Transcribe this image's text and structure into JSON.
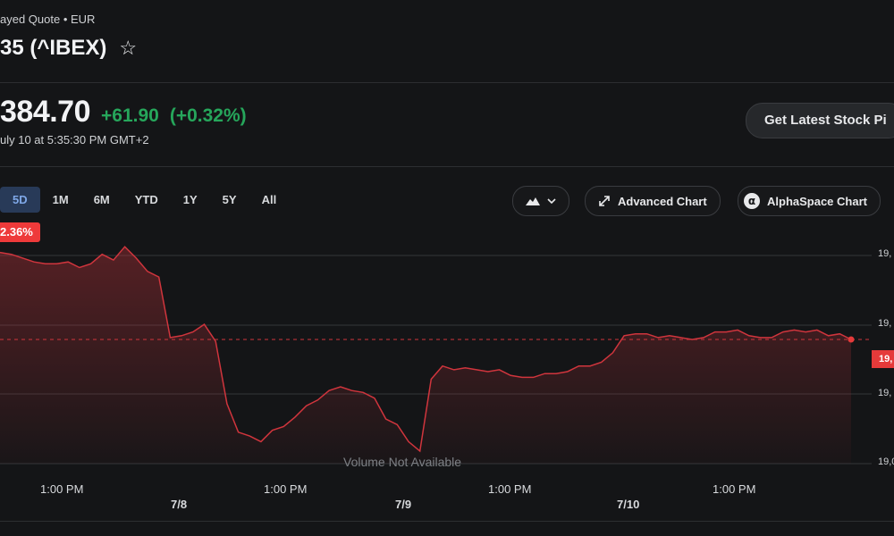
{
  "header": {
    "quote_type": "ayed Quote • EUR",
    "title": "35 (^IBEX)"
  },
  "quote": {
    "price": "384.70",
    "change": "+61.90",
    "change_pct": "(+0.32%)",
    "timestamp": "uly 10 at 5:35:30 PM GMT+2"
  },
  "cta": {
    "label": "Get Latest Stock Pi"
  },
  "range_tabs": {
    "items": [
      "5D",
      "1M",
      "6M",
      "YTD",
      "1Y",
      "5Y",
      "All"
    ],
    "selected": "5D"
  },
  "chart_controls": {
    "chart_type_icon": "mountain-chart-icon",
    "advanced_label": "Advanced Chart",
    "alphaspace_label": "AlphaSpace Chart"
  },
  "range_badge": "2.36%",
  "volume_note": "Volume Not Available",
  "colors": {
    "line": "#d0353d",
    "up": "#26a65b",
    "badge": "#ee3a3a",
    "active_tab": "#283a58"
  },
  "chart_data": {
    "type": "area",
    "y_tick_labels": [
      "19,",
      "19,",
      "19,",
      "19,0"
    ],
    "last_price_label": "19,",
    "x_time_labels": [
      "1:00 PM",
      "1:00 PM",
      "1:00 PM",
      "1:00 PM"
    ],
    "x_day_labels": [
      "7/8",
      "7/9",
      "7/10"
    ],
    "grid": true,
    "series": [
      {
        "values": [
          1.0,
          0.99,
          0.97,
          0.95,
          0.94,
          0.94,
          0.95,
          0.92,
          0.94,
          0.99,
          0.96,
          1.03,
          0.97,
          0.9,
          0.87,
          0.55,
          0.56,
          0.58,
          0.62,
          0.53,
          0.2,
          0.05,
          0.03,
          0.0,
          0.06,
          0.08,
          0.13,
          0.19,
          0.22,
          0.27,
          0.29,
          0.27,
          0.26,
          0.23,
          0.12,
          0.09,
          0.0,
          -0.05,
          0.33,
          0.4,
          0.38,
          0.39,
          0.38,
          0.37,
          0.38,
          0.35,
          0.34,
          0.34,
          0.36,
          0.36,
          0.37,
          0.4,
          0.4,
          0.42,
          0.47,
          0.56,
          0.57,
          0.57,
          0.55,
          0.56,
          0.55,
          0.54,
          0.55,
          0.58,
          0.58,
          0.59,
          0.56,
          0.55,
          0.55,
          0.58,
          0.59,
          0.58,
          0.59,
          0.56,
          0.57,
          0.54
        ]
      }
    ],
    "last_value": 0.54
  }
}
